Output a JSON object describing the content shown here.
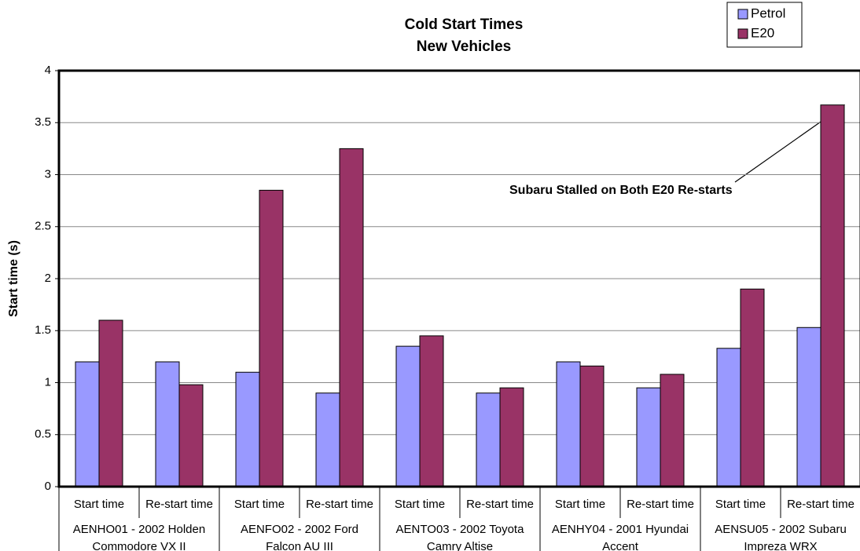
{
  "chart_data": {
    "type": "bar",
    "title": "Cold Start Times",
    "subtitle": "New Vehicles",
    "y_label": "Start time (s)",
    "categories": [
      "Start time",
      "Re-start time",
      "Start time",
      "Re-start time",
      "Start time",
      "Re-start time",
      "Start time",
      "Re-start time",
      "Start time",
      "Re-start time"
    ],
    "groups": [
      "AENHO01 - 2002 Holden Commodore VX II",
      "AENFO02 - 2002 Ford Falcon AU III",
      "AENTO03 - 2002 Toyota Camry Altise",
      "AENHY04 - 2001 Hyundai Accent",
      "AENSU05 - 2002 Subaru Impreza WRX"
    ],
    "series": [
      {
        "name": "Petrol",
        "color": "#9999ff",
        "values": [
          1.2,
          1.2,
          1.1,
          0.9,
          1.35,
          0.9,
          1.2,
          0.95,
          1.33,
          1.53
        ]
      },
      {
        "name": "E20",
        "color": "#993366",
        "values": [
          1.6,
          0.98,
          2.85,
          3.25,
          1.45,
          0.95,
          1.16,
          1.08,
          1.9,
          3.67
        ]
      }
    ],
    "ylim": [
      0,
      4
    ],
    "yticks": [
      0,
      0.5,
      1,
      1.5,
      2,
      2.5,
      3,
      3.5,
      4
    ],
    "grid": true,
    "annotation": "Subaru Stalled on Both E20 Re-starts",
    "legend": "top-right"
  }
}
